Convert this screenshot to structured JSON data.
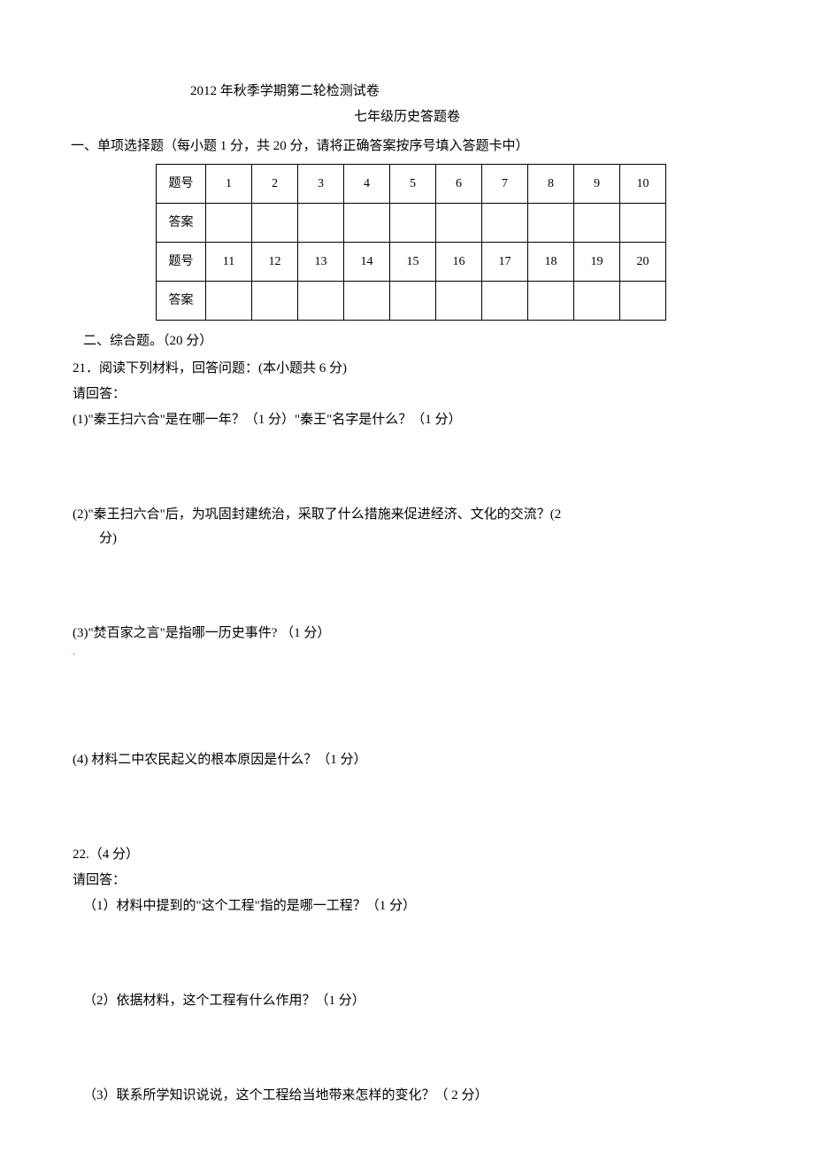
{
  "header": {
    "line1": "2012 年秋季学期第二轮检测试卷",
    "line2": "七年级历史答题卷"
  },
  "section1": {
    "heading": "一、单项选择题（每小题 1 分，共 20 分，请将正确答案按序号填入答题卡中）",
    "row_label_q": "题号",
    "row_label_a": "答案",
    "numbers_row1": [
      "1",
      "2",
      "3",
      "4",
      "5",
      "6",
      "7",
      "8",
      "9",
      "10"
    ],
    "numbers_row2": [
      "11",
      "12",
      "13",
      "14",
      "15",
      "16",
      "17",
      "18",
      "19",
      "20"
    ]
  },
  "section2": {
    "heading": "二、综合题。（20 分）"
  },
  "q21": {
    "intro": "21．阅读下列材料，回答问题：(本小题共 6 分)",
    "prompt": "请回答：",
    "p1": "(1)\"秦王扫六合\"是在哪一年？（1 分）\"秦王\"名字是什么？（1 分）",
    "p2a": "(2)\"秦王扫六合\"后，为巩固封建统治，采取了什么措施来促进经济、文化的交流？(2",
    "p2b": "分)",
    "p3": "(3)\"焚百家之言\"是指哪一历史事件? （1 分）",
    "p4": "(4) 材料二中农民起义的根本原因是什么？（1 分）"
  },
  "q22": {
    "intro": "22.（4 分）",
    "prompt": "请回答：",
    "p1": "（1）材料中提到的\"这个工程\"指的是哪一工程？（1 分）",
    "p2": "（2）依据材料，这个工程有什么作用？（1 分）",
    "p3": "（3）联系所学知识说说，这个工程给当地带来怎样的变化？（ 2 分）"
  }
}
